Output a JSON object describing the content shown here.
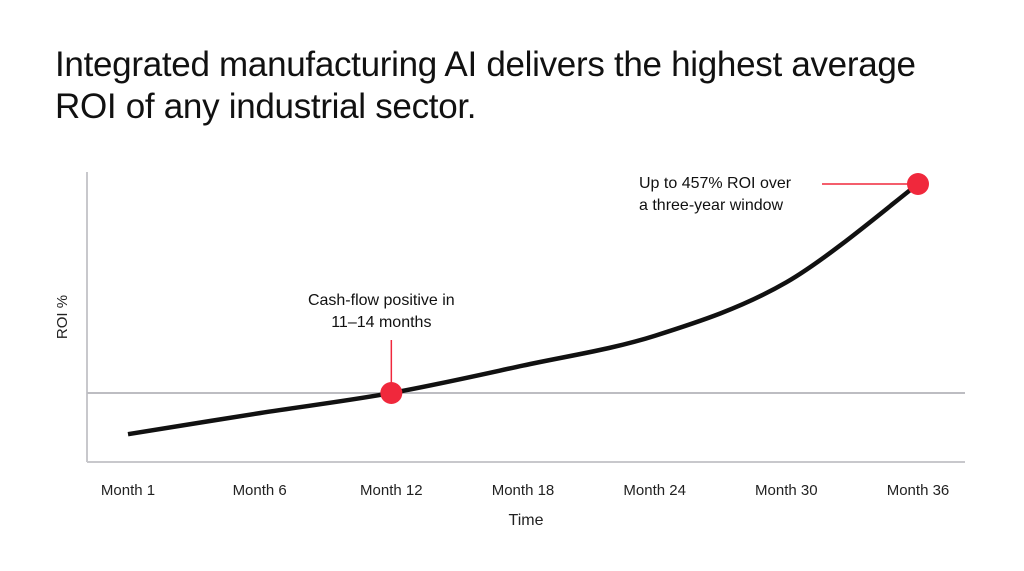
{
  "title": "Integrated manufacturing AI delivers the highest average ROI of any industrial sector.",
  "colors": {
    "curve": "#111111",
    "highlight": "#f0283c",
    "axis": "#c8c8cc",
    "baseline": "#bdbdc2"
  },
  "chart_data": {
    "type": "line",
    "title": "Integrated manufacturing AI delivers the highest average ROI of any industrial sector.",
    "xlabel": "Time",
    "ylabel": "ROI %",
    "categories": [
      "Month 1",
      "Month 6",
      "Month 12",
      "Month 18",
      "Month 24",
      "Month 30",
      "Month 36"
    ],
    "x": [
      1,
      6,
      12,
      18,
      24,
      30,
      36
    ],
    "values": [
      -90,
      -44,
      0,
      60,
      125,
      242,
      457
    ],
    "ylim": [
      -150,
      500
    ],
    "y_ticks_shown": false,
    "grid": false,
    "reference_line": {
      "y": 0,
      "label": ""
    },
    "annotations": [
      {
        "x": 12,
        "y": 0,
        "lines": [
          "Cash-flow positive in",
          "11–14 months"
        ]
      },
      {
        "x": 36,
        "y": 457,
        "lines": [
          "Up to 457% ROI over",
          "a three-year window"
        ]
      }
    ]
  }
}
